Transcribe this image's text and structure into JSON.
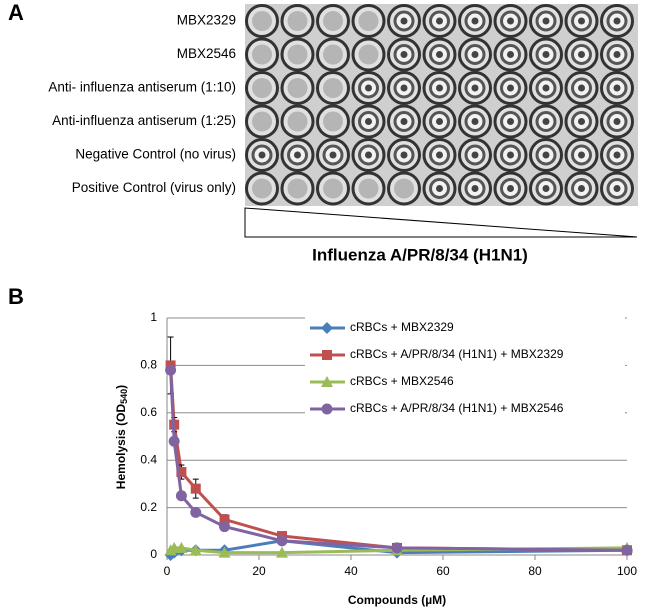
{
  "panel_a": {
    "label": "A",
    "rows": [
      "MBX2329",
      "MBX2546",
      "Anti- influenza antiserum (1:10)",
      "Anti-influenza antiserum (1:25)",
      "Negative Control (no virus)",
      "Positive Control (virus only)"
    ],
    "gradient_label": "Influenza A/PR/8/34 (H1N1)"
  },
  "panel_b": {
    "label": "B"
  },
  "chart_data": {
    "type": "line",
    "xlabel": "Compounds (µM)",
    "ylabel": {
      "text": "Hemolysis (OD",
      "subscript": "540",
      "suffix": ")"
    },
    "x": [
      0.78,
      1.56,
      3.13,
      6.25,
      12.5,
      25,
      50,
      100
    ],
    "series": [
      {
        "name": "cRBCs + MBX2329",
        "color": "#4a7ebb",
        "marker": "diamond",
        "values": [
          0.0,
          0.01,
          0.02,
          0.02,
          0.02,
          0.06,
          0.01,
          0.02
        ]
      },
      {
        "name": "cRBCs + A/PR/8/34 (H1N1) + MBX2329",
        "color": "#c0504d",
        "marker": "square",
        "values": [
          0.8,
          0.55,
          0.35,
          0.28,
          0.15,
          0.08,
          0.03,
          0.02
        ],
        "errors": [
          0.12,
          0.03,
          0.03,
          0.04,
          0.02,
          0.01,
          0.01,
          0.01
        ]
      },
      {
        "name": "cRBCs + MBX2546",
        "color": "#9bbb59",
        "marker": "triangle",
        "values": [
          0.02,
          0.03,
          0.03,
          0.02,
          0.01,
          0.01,
          0.02,
          0.03
        ]
      },
      {
        "name": "cRBCs + A/PR/8/34 (H1N1) + MBX2546",
        "color": "#8064a2",
        "marker": "circle",
        "values": [
          0.78,
          0.48,
          0.25,
          0.18,
          0.12,
          0.06,
          0.03,
          0.02
        ]
      }
    ],
    "xlim": [
      0,
      100
    ],
    "xticks": [
      0,
      20,
      40,
      60,
      80,
      100
    ],
    "ylim": [
      0,
      1
    ],
    "yticks": [
      0,
      0.2,
      0.4,
      0.6,
      0.8,
      1
    ],
    "grid": true
  }
}
